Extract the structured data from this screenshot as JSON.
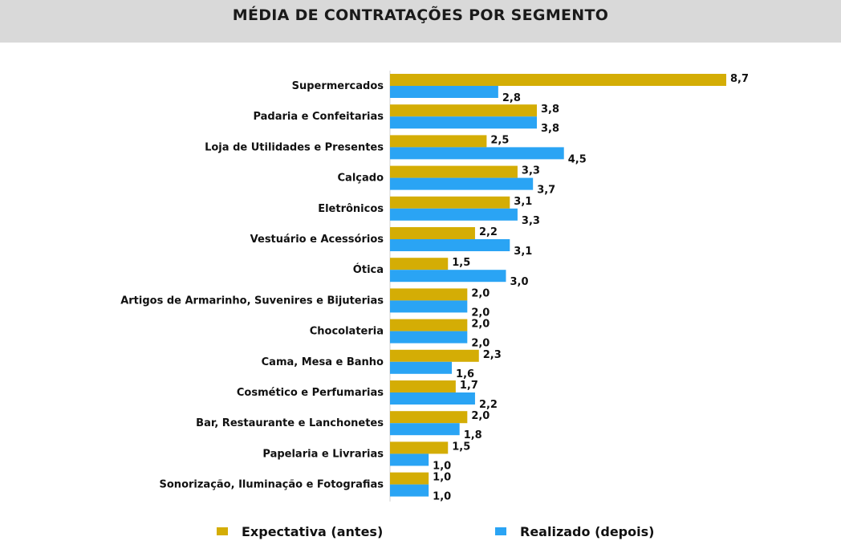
{
  "header": {
    "title": "MÉDIA DE CONTRATAÇÕES POR SEGMENTO"
  },
  "colors": {
    "expectativa": "#d4ad05",
    "realizado": "#2aa4f4",
    "header_bg": "#d9d9d9"
  },
  "chart_data": {
    "type": "bar",
    "orientation": "horizontal",
    "title": "MÉDIA DE CONTRATAÇÕES POR SEGMENTO",
    "categories": [
      "Supermercados",
      "Padaria e Confeitarias",
      "Loja de Utilidades e Presentes",
      "Calçado",
      "Eletrônicos",
      "Vestuário e Acessórios",
      "Ótica",
      "Artigos de Armarinho, Suvenires e Bijuterias",
      "Chocolateria",
      "Cama, Mesa e Banho",
      "Cosmético e Perfumarias",
      "Bar, Restaurante e Lanchonetes",
      "Papelaria e Livrarias",
      "Sonorização, Iluminação e Fotografias"
    ],
    "series": [
      {
        "name": "Expectativa (antes)",
        "color": "#d4ad05",
        "values": [
          8.7,
          3.8,
          2.5,
          3.3,
          3.1,
          2.2,
          1.5,
          2.0,
          2.0,
          2.3,
          1.7,
          2.0,
          1.5,
          1.0
        ],
        "labels": [
          "8,7",
          "3,8",
          "2,5",
          "3,3",
          "3,1",
          "2,2",
          "1,5",
          "2,0",
          "2,0",
          "2,3",
          "1,7",
          "2,0",
          "1,5",
          "1,0"
        ]
      },
      {
        "name": "Realizado (depois)",
        "color": "#2aa4f4",
        "values": [
          2.8,
          3.8,
          4.5,
          3.7,
          3.3,
          3.1,
          3.0,
          2.0,
          2.0,
          1.6,
          2.2,
          1.8,
          1.0,
          1.0
        ],
        "labels": [
          "2,8",
          "3,8",
          "4,5",
          "3,7",
          "3,3",
          "3,1",
          "3,0",
          "2,0",
          "2,0",
          "1,6",
          "2,2",
          "1,8",
          "1,0",
          "1,0"
        ]
      }
    ],
    "xlim": [
      0,
      8.7
    ],
    "grid": false,
    "legend_position": "bottom"
  },
  "legend": {
    "items": [
      "Expectativa (antes)",
      "Realizado (depois)"
    ]
  }
}
